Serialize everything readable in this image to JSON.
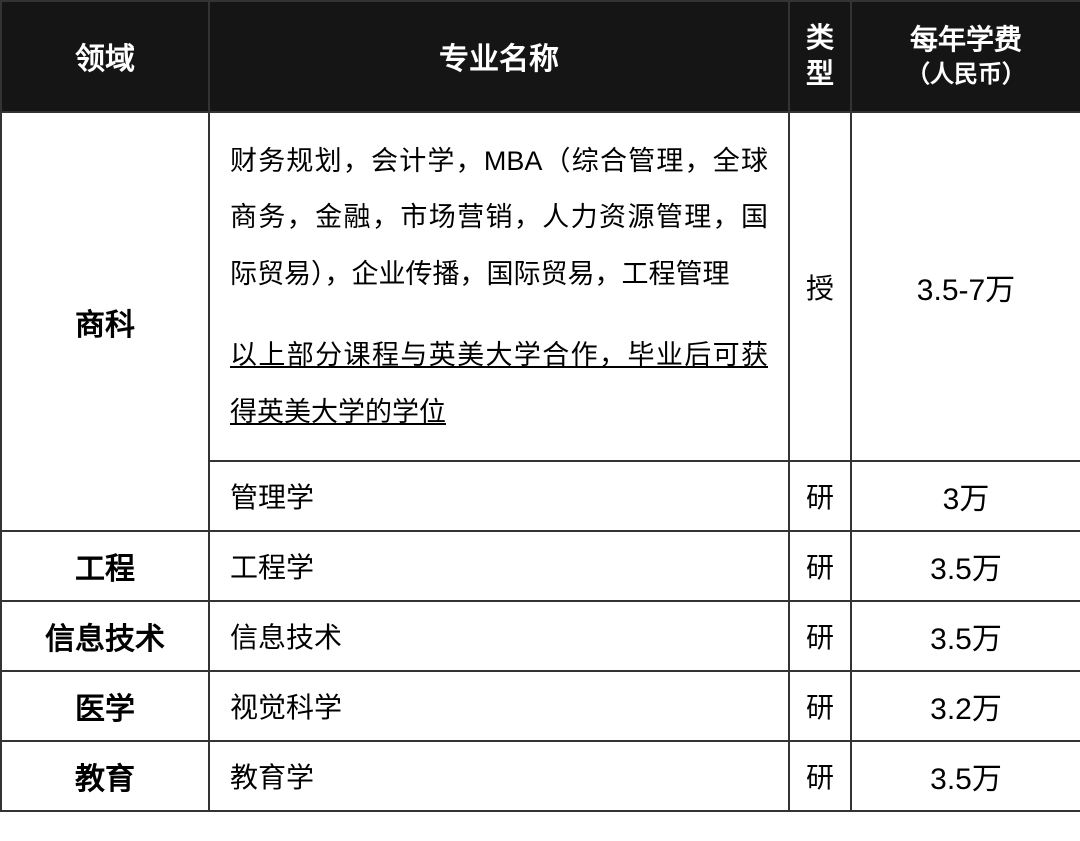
{
  "table": {
    "headers": {
      "domain": "领域",
      "major": "专业名称",
      "type": "类型",
      "fee_main": "每年学费",
      "fee_sub": "（人民币）"
    },
    "rows": [
      {
        "domain": "商科",
        "domain_rowspan": 2,
        "major_main": "财务规划，会计学，MBA（综合管理，全球商务，金融，市场营销，人力资源管理，国际贸易），企业传播，国际贸易，工程管理",
        "major_note": "以上部分课程与英美大学合作，毕业后可获得英美大学的学位",
        "type": "授",
        "fee": "3.5-7万"
      },
      {
        "major_main": "管理学",
        "type": "研",
        "fee": "3万"
      },
      {
        "domain": "工程",
        "major_main": "工程学",
        "type": "研",
        "fee": "3.5万"
      },
      {
        "domain": "信息技术",
        "major_main": "信息技术",
        "type": "研",
        "fee": "3.5万"
      },
      {
        "domain": "医学",
        "major_main": "视觉科学",
        "type": "研",
        "fee": "3.2万"
      },
      {
        "domain": "教育",
        "major_main": "教育学",
        "type": "研",
        "fee": "3.5万"
      }
    ],
    "colors": {
      "header_bg": "#151515",
      "header_text": "#ffffff",
      "border": "#333333",
      "cell_text": "#000000",
      "background": "#ffffff"
    },
    "column_widths": {
      "domain": 208,
      "major": 580,
      "type": 62,
      "fee": 230
    }
  }
}
